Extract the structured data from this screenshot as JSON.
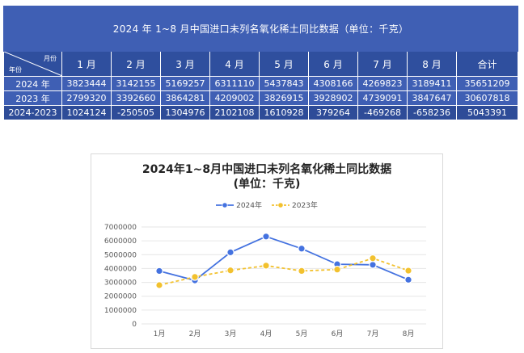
{
  "table": {
    "title": "2024 年 1~8 月中国进口未列名氧化稀土同比数据（单位：千克）",
    "corner_month_label": "月份",
    "corner_year_label": "年份",
    "columns": [
      "1 月",
      "2 月",
      "3 月",
      "4 月",
      "5 月",
      "6 月",
      "7 月",
      "8 月",
      "合计"
    ],
    "rows": [
      {
        "label": "2024 年",
        "values": [
          "3823444",
          "3142155",
          "5169257",
          "6311110",
          "5437843",
          "4308166",
          "4269823",
          "3189411",
          "35651209"
        ]
      },
      {
        "label": "2023 年",
        "values": [
          "2799320",
          "3392660",
          "3864281",
          "4209002",
          "3826915",
          "3928902",
          "4739091",
          "3847647",
          "30607818"
        ]
      },
      {
        "label": "2024-2023",
        "values": [
          "1024124",
          "-250505",
          "1304976",
          "2102108",
          "1610928",
          "379264",
          "-469268",
          "-658236",
          "5043391"
        ]
      }
    ]
  },
  "chart": {
    "title_line1": "2024年1~8月中国进口未列名氧化稀土同比数据",
    "title_line2": "(单位：千克)"
  },
  "chart_data": {
    "type": "line",
    "title": "2024年1~8月中国进口未列名氧化稀土同比数据 (单位：千克)",
    "categories": [
      "1月",
      "2月",
      "3月",
      "4月",
      "5月",
      "6月",
      "7月",
      "8月"
    ],
    "series": [
      {
        "name": "2024年",
        "color": "#4472e0",
        "style": "solid",
        "values": [
          3823444,
          3142155,
          5169257,
          6311110,
          5437843,
          4308166,
          4269823,
          3189411
        ]
      },
      {
        "name": "2023年",
        "color": "#f2c12e",
        "style": "dashed",
        "values": [
          2799320,
          3392660,
          3864281,
          4209002,
          3826915,
          3928902,
          4739091,
          3847647
        ]
      }
    ],
    "yticks": [
      0,
      1000000,
      2000000,
      3000000,
      4000000,
      5000000,
      6000000,
      7000000
    ],
    "ylim": [
      0,
      7000000
    ],
    "grid": true,
    "legend_position": "top"
  }
}
